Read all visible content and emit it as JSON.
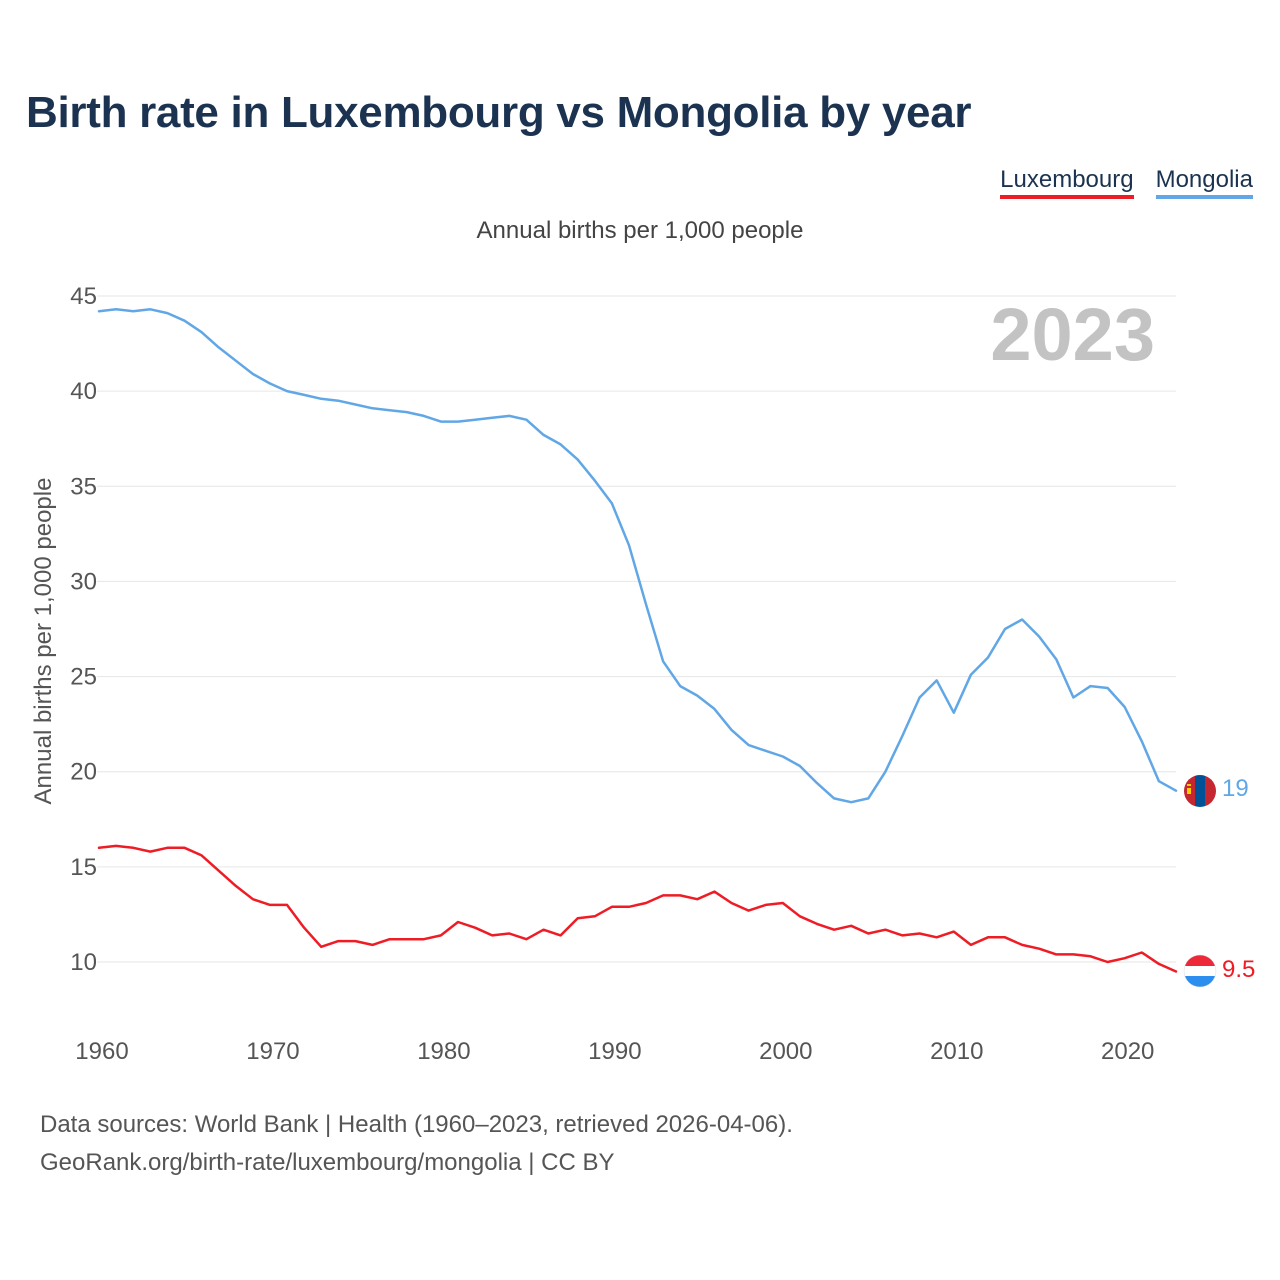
{
  "header": {
    "title": "Birth rate in Luxembourg vs Mongolia by year",
    "subtitle": "Annual births per 1,000 people"
  },
  "legend": {
    "items": [
      {
        "label": "Luxembourg",
        "color": "#ee1c25"
      },
      {
        "label": "Mongolia",
        "color": "#61a7e6"
      }
    ]
  },
  "footer": {
    "sources": "Data sources: World Bank | Health (1960–2023, retrieved 2026-04-06).",
    "credit": "GeoRank.org/birth-rate/luxembourg/mongolia | CC BY"
  },
  "chart_data": {
    "type": "line",
    "title": "Birth rate in Luxembourg vs Mongolia by year",
    "ylabel": "Annual births per 1,000 people",
    "xlabel": "",
    "year_watermark": "2023",
    "xlim": [
      1960,
      2023
    ],
    "ylim": [
      7.5,
      45
    ],
    "xticks": [
      1960,
      1970,
      1980,
      1990,
      2000,
      2010,
      2020
    ],
    "yticks": [
      10,
      15,
      20,
      25,
      30,
      35,
      40,
      45
    ],
    "grid": true,
    "x": [
      1960,
      1961,
      1962,
      1963,
      1964,
      1965,
      1966,
      1967,
      1968,
      1969,
      1970,
      1971,
      1972,
      1973,
      1974,
      1975,
      1976,
      1977,
      1978,
      1979,
      1980,
      1981,
      1982,
      1983,
      1984,
      1985,
      1986,
      1987,
      1988,
      1989,
      1990,
      1991,
      1992,
      1993,
      1994,
      1995,
      1996,
      1997,
      1998,
      1999,
      2000,
      2001,
      2002,
      2003,
      2004,
      2005,
      2006,
      2007,
      2008,
      2009,
      2010,
      2011,
      2012,
      2013,
      2014,
      2015,
      2016,
      2017,
      2018,
      2019,
      2020,
      2021,
      2022,
      2023
    ],
    "series": [
      {
        "name": "Luxembourg",
        "color": "#ee1c25",
        "end_label": "9.5",
        "values": [
          16.0,
          16.1,
          16.0,
          15.8,
          16.0,
          16.0,
          15.6,
          14.8,
          14.0,
          13.3,
          13.0,
          13.0,
          11.8,
          10.8,
          11.1,
          11.1,
          10.9,
          11.2,
          11.2,
          11.2,
          11.4,
          12.1,
          11.8,
          11.4,
          11.5,
          11.2,
          11.7,
          11.4,
          12.3,
          12.4,
          12.9,
          12.9,
          13.1,
          13.5,
          13.5,
          13.3,
          13.7,
          13.1,
          12.7,
          13.0,
          13.1,
          12.4,
          12.0,
          11.7,
          11.9,
          11.5,
          11.7,
          11.4,
          11.5,
          11.3,
          11.6,
          10.9,
          11.3,
          11.3,
          10.9,
          10.7,
          10.4,
          10.4,
          10.3,
          10.0,
          10.2,
          10.5,
          9.9,
          9.5
        ]
      },
      {
        "name": "Mongolia",
        "color": "#61a7e6",
        "end_label": "19",
        "values": [
          44.2,
          44.3,
          44.2,
          44.3,
          44.1,
          43.7,
          43.1,
          42.3,
          41.6,
          40.9,
          40.4,
          40.0,
          39.8,
          39.6,
          39.5,
          39.3,
          39.1,
          39.0,
          38.9,
          38.7,
          38.4,
          38.4,
          38.5,
          38.6,
          38.7,
          38.5,
          37.7,
          37.2,
          36.4,
          35.3,
          34.1,
          31.9,
          28.8,
          25.8,
          24.5,
          24.0,
          23.3,
          22.2,
          21.4,
          21.1,
          20.8,
          20.3,
          19.4,
          18.6,
          18.4,
          18.6,
          20.0,
          21.9,
          23.9,
          24.8,
          23.1,
          25.1,
          26.0,
          27.5,
          28.0,
          27.1,
          25.9,
          23.9,
          24.5,
          24.4,
          23.4,
          21.6,
          19.5,
          19.0
        ]
      }
    ]
  }
}
